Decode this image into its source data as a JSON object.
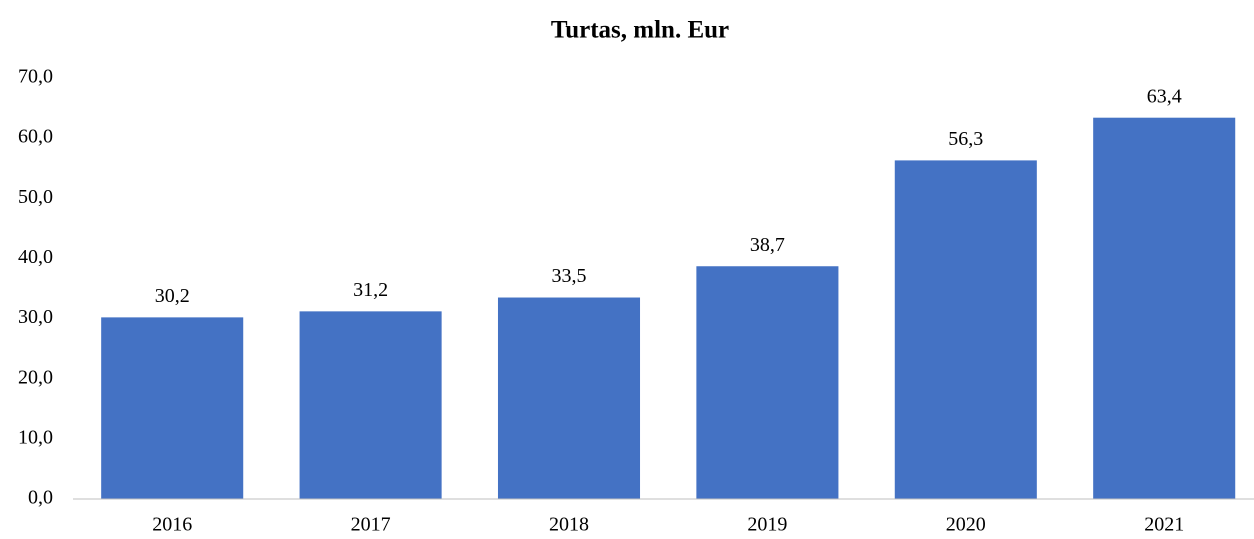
{
  "chart_data": {
    "type": "bar",
    "title": "Turtas, mln. Eur",
    "categories": [
      "2016",
      "2017",
      "2018",
      "2019",
      "2020",
      "2021"
    ],
    "values": [
      30.2,
      31.2,
      33.5,
      38.7,
      56.3,
      63.4
    ],
    "value_labels": [
      "30,2",
      "31,2",
      "33,5",
      "38,7",
      "56,3",
      "63,4"
    ],
    "color": "#4472c4",
    "ylim": [
      0,
      70
    ],
    "yticks": [
      {
        "value": 0,
        "label": "0,0"
      },
      {
        "value": 10,
        "label": "10,0"
      },
      {
        "value": 20,
        "label": "20,0"
      },
      {
        "value": 30,
        "label": "30,0"
      },
      {
        "value": 40,
        "label": "40,0"
      },
      {
        "value": 50,
        "label": "50,0"
      },
      {
        "value": 60,
        "label": "60,0"
      },
      {
        "value": 70,
        "label": "70,0"
      }
    ],
    "grid": false
  }
}
